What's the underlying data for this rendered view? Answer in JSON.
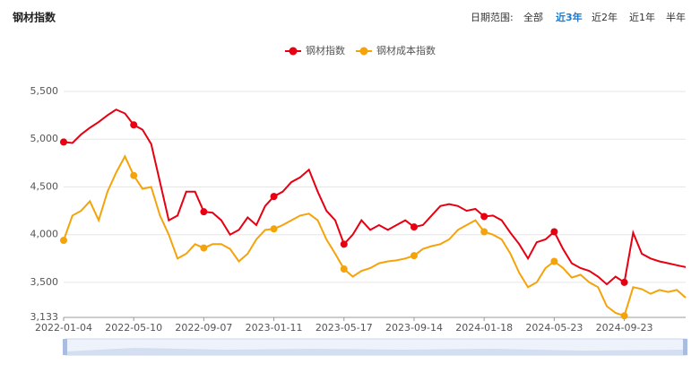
{
  "chart_data": {
    "type": "line",
    "title": "钢材指数",
    "categories": [
      "2022-01-04",
      null,
      null,
      null,
      null,
      null,
      null,
      null,
      "2022-05-10",
      null,
      null,
      null,
      null,
      null,
      null,
      null,
      "2022-09-07",
      null,
      null,
      null,
      null,
      null,
      null,
      null,
      "2023-01-11",
      null,
      null,
      null,
      null,
      null,
      null,
      null,
      "2023-05-17",
      null,
      null,
      null,
      null,
      null,
      null,
      null,
      "2023-09-14",
      null,
      null,
      null,
      null,
      null,
      null,
      null,
      "2024-01-18",
      null,
      null,
      null,
      null,
      null,
      null,
      null,
      "2024-05-23",
      null,
      null,
      null,
      null,
      null,
      null,
      null,
      "2024-09-23",
      null,
      null,
      null,
      null,
      null,
      null,
      null
    ],
    "series": [
      {
        "name": "钢材指数",
        "color": "#e60012",
        "values": [
          4970,
          4960,
          5050,
          5120,
          5180,
          5250,
          5310,
          5270,
          5150,
          5100,
          4950,
          4550,
          4150,
          4200,
          4450,
          4450,
          4240,
          4230,
          4150,
          4000,
          4050,
          4180,
          4100,
          4300,
          4400,
          4450,
          4550,
          4600,
          4680,
          4450,
          4250,
          4150,
          3900,
          4000,
          4150,
          4050,
          4100,
          4050,
          4100,
          4150,
          4080,
          4100,
          4200,
          4300,
          4320,
          4300,
          4250,
          4270,
          4190,
          4200,
          4150,
          4020,
          3900,
          3750,
          3920,
          3950,
          4030,
          3850,
          3700,
          3650,
          3620,
          3560,
          3480,
          3560,
          3500,
          4020,
          3800,
          3750,
          3720,
          3700,
          3680,
          3660
        ]
      },
      {
        "name": "钢材成本指数",
        "color": "#f5a30a",
        "values": [
          3940,
          4200,
          4250,
          4350,
          4150,
          4450,
          4650,
          4820,
          4620,
          4480,
          4500,
          4200,
          4000,
          3750,
          3800,
          3900,
          3860,
          3900,
          3900,
          3850,
          3720,
          3800,
          3950,
          4050,
          4060,
          4100,
          4150,
          4200,
          4220,
          4150,
          3950,
          3800,
          3640,
          3560,
          3620,
          3650,
          3700,
          3720,
          3730,
          3750,
          3780,
          3850,
          3880,
          3900,
          3950,
          4050,
          4100,
          4150,
          4030,
          4000,
          3950,
          3800,
          3600,
          3450,
          3500,
          3650,
          3720,
          3650,
          3550,
          3580,
          3500,
          3450,
          3250,
          3180,
          3150,
          3450,
          3430,
          3380,
          3420,
          3400,
          3420,
          3340
        ]
      }
    ],
    "ylim": [
      3133,
      5500
    ],
    "yticks": [
      {
        "value": 3133,
        "label": "3,133"
      },
      {
        "value": 3500,
        "label": "3,500"
      },
      {
        "value": 4000,
        "label": "4,000"
      },
      {
        "value": 4500,
        "label": "4,500"
      },
      {
        "value": 5000,
        "label": "5,000"
      },
      {
        "value": 5500,
        "label": "5,500"
      }
    ],
    "grid": true,
    "legend": "top"
  },
  "range_selector": {
    "label": "日期范围:",
    "options": [
      "全部",
      "近3年",
      "近2年",
      "近1年",
      "半年"
    ],
    "active": 1
  }
}
